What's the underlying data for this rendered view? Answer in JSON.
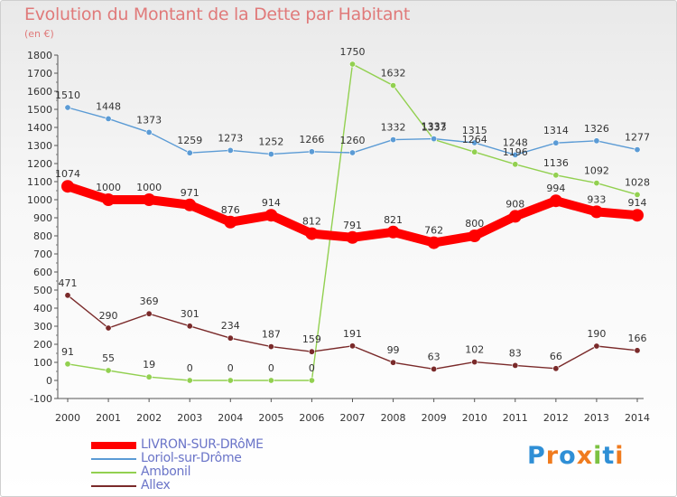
{
  "title": "Evolution du Montant de la Dette par Habitant",
  "unit": "(en €)",
  "logo": {
    "text": "Proxiti",
    "letter_colors": [
      "#2f8fd6",
      "#f07b1e",
      "#2f8fd6",
      "#f07b1e",
      "#7cc242",
      "#2f8fd6",
      "#f07b1e"
    ]
  },
  "chart_data": {
    "type": "line",
    "title": "Evolution du Montant de la Dette par Habitant",
    "ylabel": "(en €)",
    "xlabel": "",
    "x": [
      2000,
      2001,
      2002,
      2003,
      2004,
      2005,
      2006,
      2007,
      2008,
      2009,
      2010,
      2011,
      2012,
      2013,
      2014
    ],
    "ylim": [
      -100,
      1800
    ],
    "yticks": [
      -100,
      0,
      100,
      200,
      300,
      400,
      500,
      600,
      700,
      800,
      900,
      1000,
      1100,
      1200,
      1300,
      1400,
      1500,
      1600,
      1700,
      1800
    ],
    "grid": false,
    "legend_position": "bottom-left",
    "series": [
      {
        "name": "LIVRON-SUR-DRôME",
        "color": "#ff0000",
        "emphasis": true,
        "values": [
          1074,
          1000,
          1000,
          971,
          876,
          914,
          812,
          791,
          821,
          762,
          800,
          908,
          994,
          933,
          914
        ]
      },
      {
        "name": "Loriol-sur-Drôme",
        "color": "#5b9bd5",
        "emphasis": false,
        "values": [
          1510,
          1448,
          1373,
          1259,
          1273,
          1252,
          1266,
          1260,
          1332,
          1337,
          1315,
          1248,
          1314,
          1326,
          1277
        ]
      },
      {
        "name": "Ambonil",
        "color": "#92d050",
        "emphasis": false,
        "values": [
          91,
          55,
          19,
          0,
          0,
          0,
          0,
          1750,
          1632,
          1333,
          1264,
          1196,
          1136,
          1092,
          1028
        ]
      },
      {
        "name": "Allex",
        "color": "#7a2a2a",
        "emphasis": false,
        "values": [
          471,
          290,
          369,
          301,
          234,
          187,
          159,
          191,
          99,
          63,
          102,
          83,
          66,
          190,
          166
        ]
      }
    ]
  }
}
